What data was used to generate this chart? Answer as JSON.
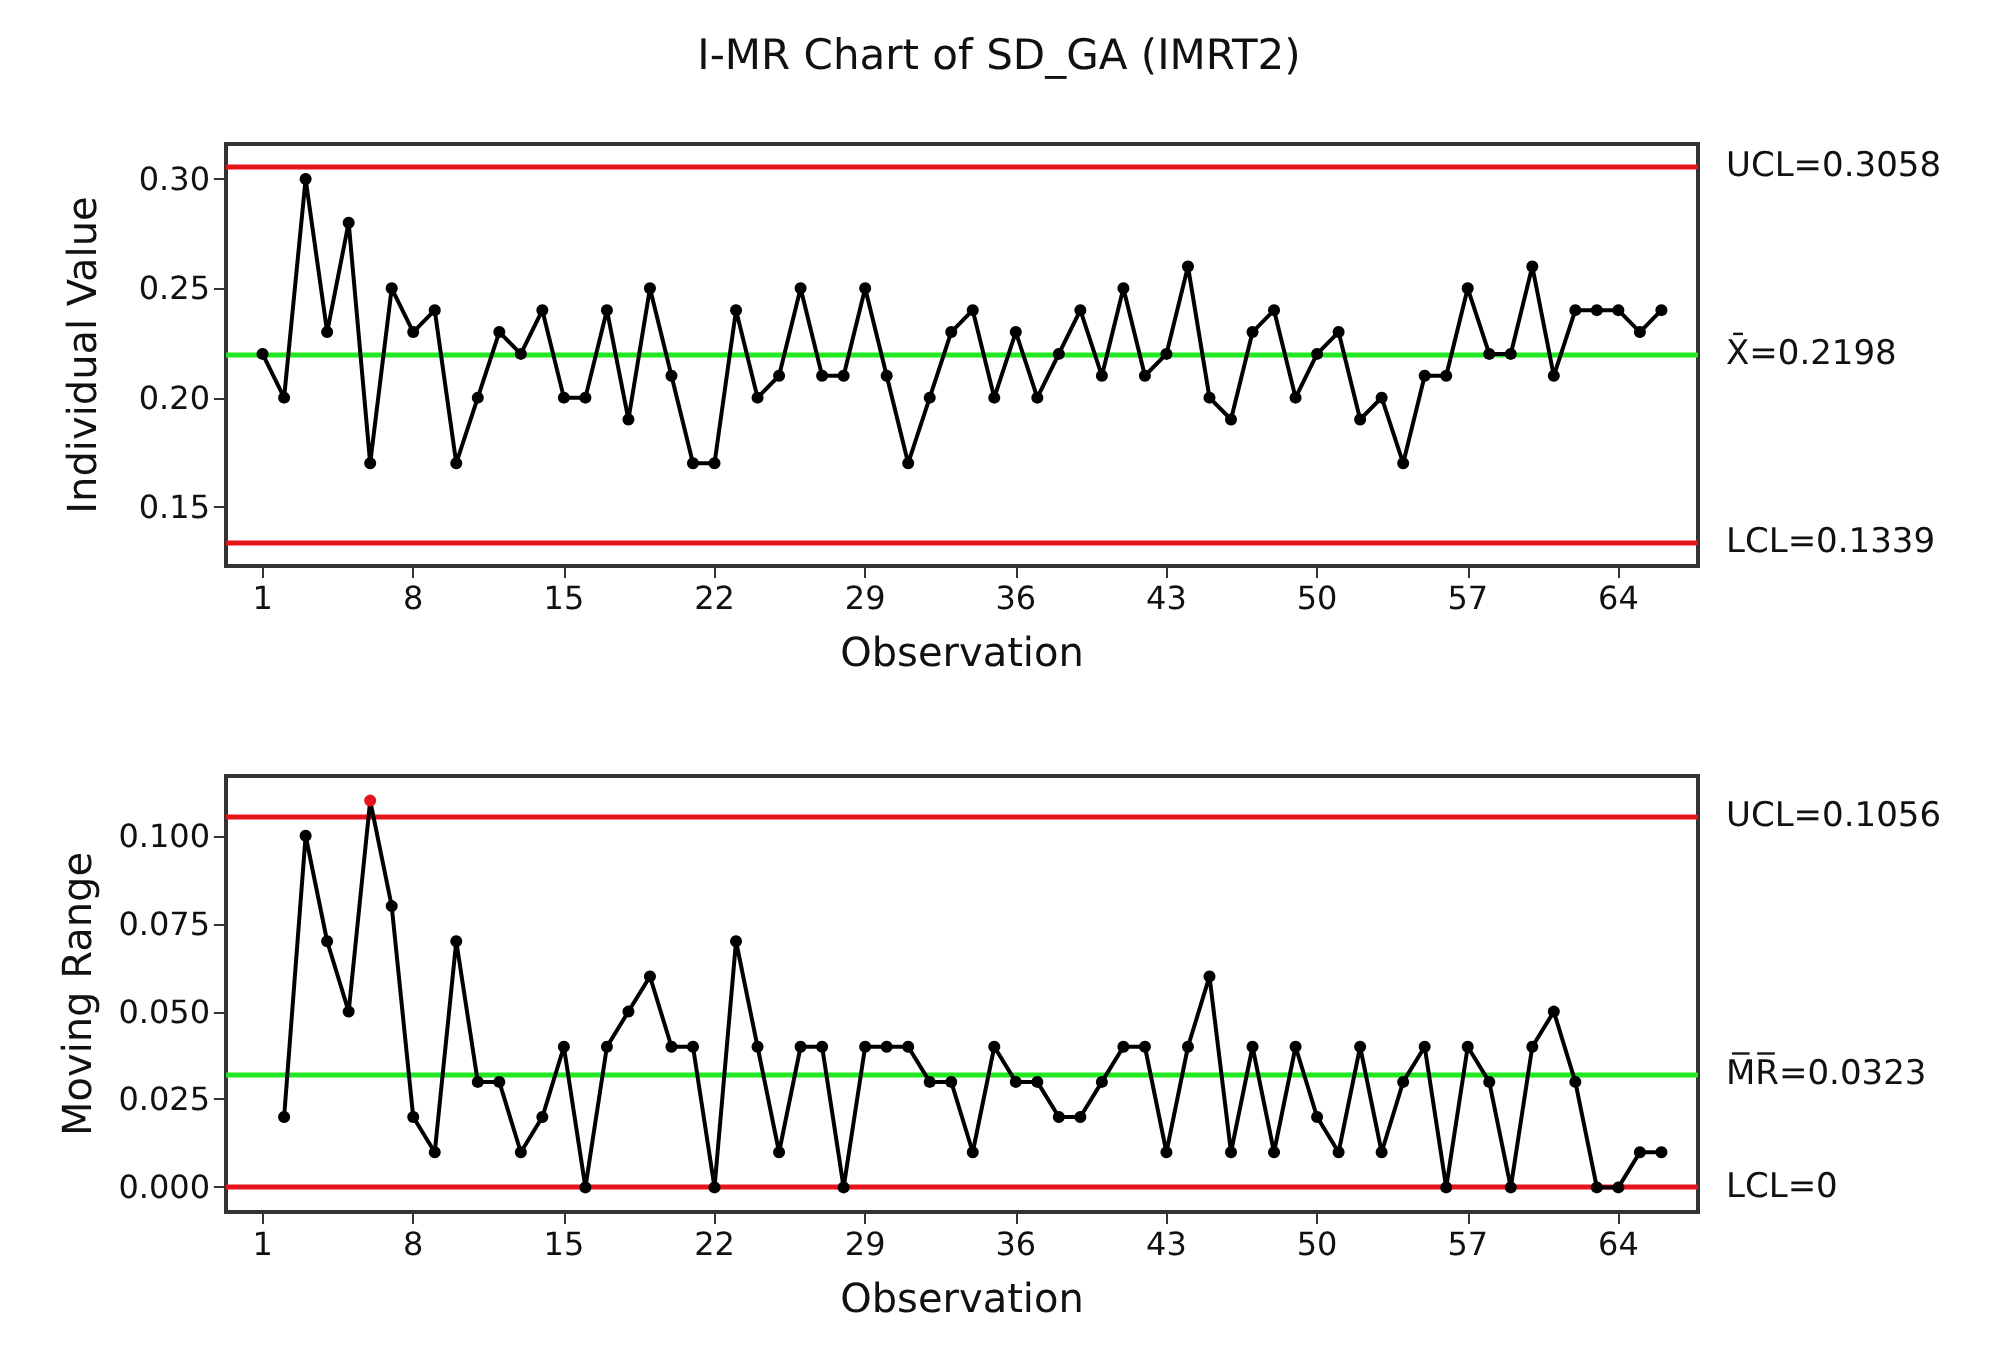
{
  "chart_data": [
    {
      "type": "line",
      "title": "I-MR Chart of SD_GA (IMRT2)",
      "xlabel": "Observation",
      "ylabel": "Individual Value",
      "marker": "circle",
      "line_style": "solid",
      "x": [
        1,
        2,
        3,
        4,
        5,
        6,
        7,
        8,
        9,
        10,
        11,
        12,
        13,
        14,
        15,
        16,
        17,
        18,
        19,
        20,
        21,
        22,
        23,
        24,
        25,
        26,
        27,
        28,
        29,
        30,
        31,
        32,
        33,
        34,
        35,
        36,
        37,
        38,
        39,
        40,
        41,
        42,
        43,
        44,
        45,
        46,
        47,
        48,
        49,
        50,
        51,
        52,
        53,
        54,
        55,
        56,
        57,
        58,
        59,
        60,
        61,
        62,
        63,
        64,
        65,
        66
      ],
      "series": [
        {
          "color": "#000000",
          "values": [
            0.22,
            0.2,
            0.3,
            0.23,
            0.28,
            0.17,
            0.25,
            0.23,
            0.24,
            0.17,
            0.2,
            0.23,
            0.22,
            0.24,
            0.2,
            0.2,
            0.24,
            0.19,
            0.25,
            0.21,
            0.17,
            0.17,
            0.24,
            0.2,
            0.21,
            0.25,
            0.21,
            0.21,
            0.25,
            0.21,
            0.17,
            0.2,
            0.23,
            0.24,
            0.2,
            0.23,
            0.2,
            0.22,
            0.24,
            0.21,
            0.25,
            0.21,
            0.22,
            0.26,
            0.2,
            0.19,
            0.23,
            0.24,
            0.2,
            0.22,
            0.23,
            0.19,
            0.2,
            0.17,
            0.21,
            0.21,
            0.25,
            0.22,
            0.22,
            0.26,
            0.21,
            0.24,
            0.24,
            0.24,
            0.23,
            0.24
          ]
        }
      ],
      "xlim": [
        -0.7,
        67.7
      ],
      "xticks": [
        1,
        8,
        15,
        22,
        29,
        36,
        43,
        50,
        57,
        64
      ],
      "ylim": [
        0.123,
        0.316
      ],
      "yticks": [
        0.15,
        {
          "value": 0.2,
          "label": "0.20"
        },
        0.25,
        {
          "value": 0.3,
          "label": "0.30"
        }
      ],
      "ref_lines": [
        {
          "axis": "y",
          "value": 0.3058,
          "label": "UCL=0.3058",
          "color": "#e8141c"
        },
        {
          "axis": "y",
          "value": 0.2198,
          "label": "X̄=0.2198",
          "color": "#22e822"
        },
        {
          "axis": "y",
          "value": 0.1339,
          "label": "LCL=0.1339",
          "color": "#e8141c"
        }
      ]
    },
    {
      "type": "line",
      "xlabel": "Observation",
      "ylabel": "Moving Range",
      "marker": "circle",
      "line_style": "solid",
      "x": [
        2,
        3,
        4,
        5,
        6,
        7,
        8,
        9,
        10,
        11,
        12,
        13,
        14,
        15,
        16,
        17,
        18,
        19,
        20,
        21,
        22,
        23,
        24,
        25,
        26,
        27,
        28,
        29,
        30,
        31,
        32,
        33,
        34,
        35,
        36,
        37,
        38,
        39,
        40,
        41,
        42,
        43,
        44,
        45,
        46,
        47,
        48,
        49,
        50,
        51,
        52,
        53,
        54,
        55,
        56,
        57,
        58,
        59,
        60,
        61,
        62,
        63,
        64,
        65,
        66
      ],
      "series": [
        {
          "color": "#000000",
          "values": [
            0.02,
            0.1,
            0.07,
            0.05,
            0.11,
            0.08,
            0.02,
            0.01,
            0.07,
            0.03,
            0.03,
            0.01,
            0.02,
            0.04,
            0,
            0.04,
            0.05,
            0.06,
            0.04,
            0.04,
            0,
            0.07,
            0.04,
            0.01,
            0.04,
            0.04,
            0,
            0.04,
            0.04,
            0.04,
            0.03,
            0.03,
            0.01,
            0.04,
            0.03,
            0.03,
            0.02,
            0.02,
            0.03,
            0.04,
            0.04,
            0.01,
            0.04,
            0.06,
            0.01,
            0.04,
            0.01,
            0.04,
            0.02,
            0.01,
            0.04,
            0.01,
            0.03,
            0.04,
            0,
            0.04,
            0.03,
            0,
            0.04,
            0.05,
            0.03,
            0,
            0,
            0.01,
            0.01
          ],
          "colors": [
            "#000000",
            "#000000",
            "#000000",
            "#000000",
            "#e8141c",
            "#000000",
            "#000000",
            "#000000",
            "#000000",
            "#000000",
            "#000000",
            "#000000",
            "#000000",
            "#000000",
            "#000000",
            "#000000",
            "#000000",
            "#000000",
            "#000000",
            "#000000",
            "#000000",
            "#000000",
            "#000000",
            "#000000",
            "#000000",
            "#000000",
            "#000000",
            "#000000",
            "#000000",
            "#000000",
            "#000000",
            "#000000",
            "#000000",
            "#000000",
            "#000000",
            "#000000",
            "#000000",
            "#000000",
            "#000000",
            "#000000",
            "#000000",
            "#000000",
            "#000000",
            "#000000",
            "#000000",
            "#000000",
            "#000000",
            "#000000",
            "#000000",
            "#000000",
            "#000000",
            "#000000",
            "#000000",
            "#000000",
            "#000000",
            "#000000",
            "#000000",
            "#000000",
            "#000000",
            "#000000",
            "#000000",
            "#000000",
            "#000000",
            "#000000",
            "#000000"
          ]
        }
      ],
      "xlim": [
        -0.7,
        67.7
      ],
      "xticks": [
        1,
        8,
        15,
        22,
        29,
        36,
        43,
        50,
        57,
        64
      ],
      "ylim": [
        -0.007,
        0.117
      ],
      "yticks": [
        {
          "value": 0,
          "label": "0.000"
        },
        0.025,
        {
          "value": 0.05,
          "label": "0.050"
        },
        0.075,
        {
          "value": 0.1,
          "label": "0.100"
        }
      ],
      "ref_lines": [
        {
          "axis": "y",
          "value": 0.1056,
          "label": "UCL=0.1056",
          "color": "#e8141c"
        },
        {
          "axis": "y",
          "value": 0.0323,
          "label": "M̅R̅=0.0323",
          "color": "#22e822"
        },
        {
          "axis": "y",
          "value": 0,
          "label": "LCL=0",
          "color": "#e8141c"
        }
      ]
    }
  ]
}
